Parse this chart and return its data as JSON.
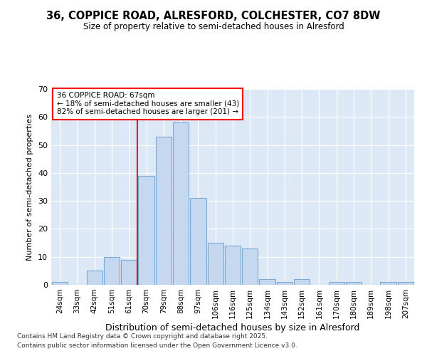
{
  "title1": "36, COPPICE ROAD, ALRESFORD, COLCHESTER, CO7 8DW",
  "title2": "Size of property relative to semi-detached houses in Alresford",
  "xlabel": "Distribution of semi-detached houses by size in Alresford",
  "ylabel": "Number of semi-detached properties",
  "categories": [
    "24sqm",
    "33sqm",
    "42sqm",
    "51sqm",
    "61sqm",
    "70sqm",
    "79sqm",
    "88sqm",
    "97sqm",
    "106sqm",
    "116sqm",
    "125sqm",
    "134sqm",
    "143sqm",
    "152sqm",
    "161sqm",
    "170sqm",
    "180sqm",
    "189sqm",
    "198sqm",
    "207sqm"
  ],
  "values": [
    1,
    0,
    5,
    10,
    9,
    39,
    53,
    58,
    31,
    15,
    14,
    13,
    2,
    1,
    2,
    0,
    1,
    1,
    0,
    1,
    1
  ],
  "bar_color": "#c5d8f0",
  "bar_edge_color": "#7aaad4",
  "red_line_index": 5,
  "annotation_text_line1": "36 COPPICE ROAD: 67sqm",
  "annotation_text_line2": "← 18% of semi-detached houses are smaller (43)",
  "annotation_text_line3": "82% of semi-detached houses are larger (201) →",
  "footnote1": "Contains HM Land Registry data © Crown copyright and database right 2025.",
  "footnote2": "Contains public sector information licensed under the Open Government Licence v3.0.",
  "ylim": [
    0,
    70
  ],
  "bg_color": "#ffffff",
  "plot_bg_color": "#dce8f5"
}
